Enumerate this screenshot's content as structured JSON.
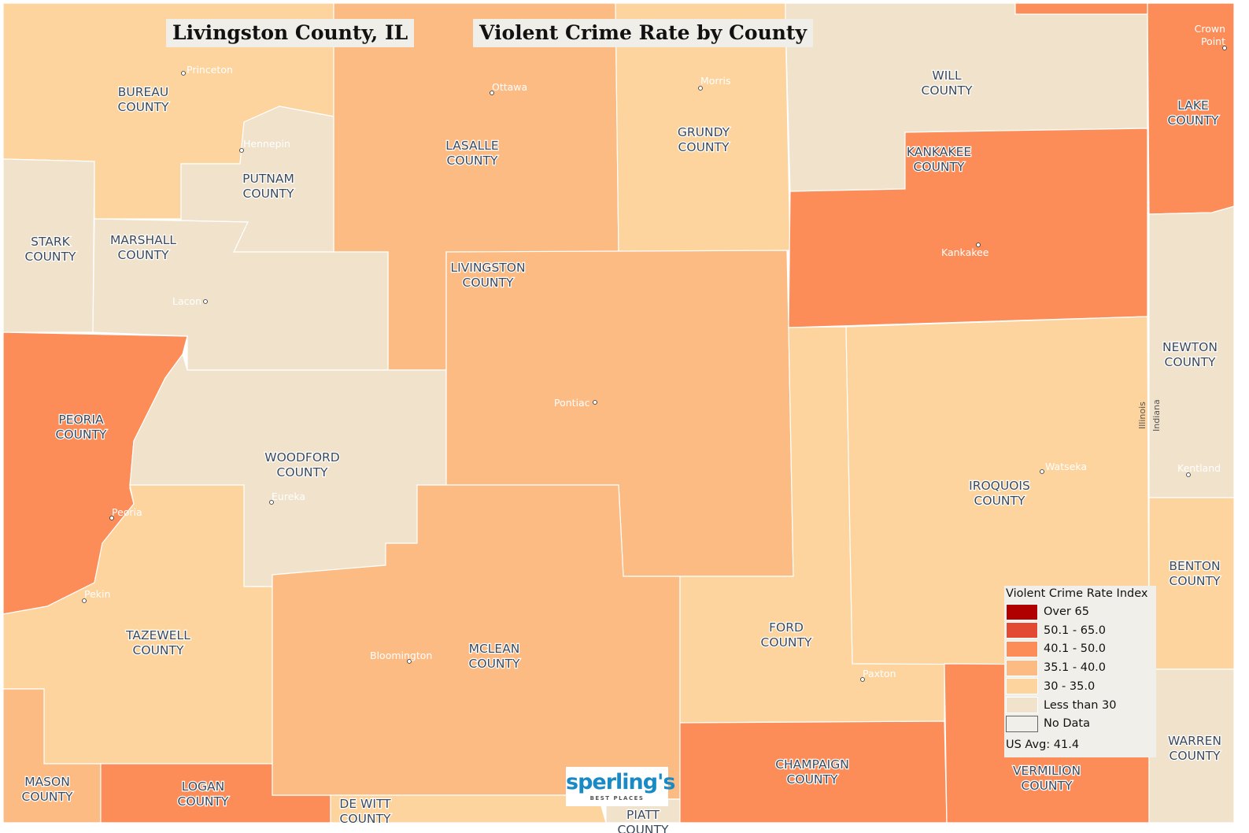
{
  "titles": {
    "left": "Livingston County, IL",
    "right": "Violent Crime Rate by County"
  },
  "colors": {
    "over_65": "#b10000",
    "r50_65": "#e34a33",
    "r40_50": "#fc8d59",
    "r35_40": "#fdbb84",
    "r30_35": "#fdd49e",
    "lt_30": "#f0e2cb",
    "no_data": "#f0efe9"
  },
  "legend": {
    "title": "Violent Crime Rate Index",
    "items": [
      {
        "label": "Over 65",
        "color": "#b10000"
      },
      {
        "label": "50.1 - 65.0",
        "color": "#e34a33"
      },
      {
        "label": "40.1 - 50.0",
        "color": "#fc8d59"
      },
      {
        "label": "35.1 - 40.0",
        "color": "#fdbb84"
      },
      {
        "label": "30 - 35.0",
        "color": "#fdd49e"
      },
      {
        "label": "Less than 30",
        "color": "#f0e2cb"
      },
      {
        "label": "No Data",
        "color": "#f0efe9"
      }
    ],
    "us_avg": "US Avg: 41.4"
  },
  "counties": [
    {
      "name": "BUREAU COUNTY",
      "range": "r30_35"
    },
    {
      "name": "LASALLE COUNTY",
      "range": "r35_40"
    },
    {
      "name": "GRUNDY COUNTY",
      "range": "r30_35"
    },
    {
      "name": "WILL COUNTY",
      "range": "lt_30"
    },
    {
      "name": "",
      "range": "r40_50"
    },
    {
      "name": "LAKE COUNTY",
      "range": "r40_50"
    },
    {
      "name": "KANKAKEE COUNTY",
      "range": "r40_50"
    },
    {
      "name": "PUTNAM COUNTY",
      "range": "lt_30"
    },
    {
      "name": "STARK COUNTY",
      "range": "lt_30"
    },
    {
      "name": "MARSHALL COUNTY",
      "range": "lt_30"
    },
    {
      "name": "PEORIA COUNTY",
      "range": "r40_50"
    },
    {
      "name": "WOODFORD COUNTY",
      "range": "lt_30"
    },
    {
      "name": "LIVINGSTON COUNTY",
      "range": "r35_40"
    },
    {
      "name": "TAZEWELL COUNTY",
      "range": "r30_35"
    },
    {
      "name": "MASON COUNTY",
      "range": "r35_40"
    },
    {
      "name": "LOGAN COUNTY",
      "range": "r40_50"
    },
    {
      "name": "MCLEAN COUNTY",
      "range": "r35_40"
    },
    {
      "name": "DE WITT COUNTY",
      "range": "r30_35"
    },
    {
      "name": "PIATT COUNTY",
      "range": "lt_30"
    },
    {
      "name": "FORD COUNTY",
      "range": "r30_35"
    },
    {
      "name": "IROQUOIS COUNTY",
      "range": "r30_35"
    },
    {
      "name": "CHAMPAIGN COUNTY",
      "range": "r40_50"
    },
    {
      "name": "VERMILION COUNTY",
      "range": "r40_50"
    },
    {
      "name": "NEWTON COUNTY",
      "range": "lt_30"
    },
    {
      "name": "BENTON COUNTY",
      "range": "r30_35"
    },
    {
      "name": "WARREN COUNTY",
      "range": "lt_30"
    }
  ],
  "cities": [
    "Princeton",
    "Ottawa",
    "Morris",
    "Crown Point",
    "Hennepin",
    "Kankakee",
    "Lacon",
    "Pontiac",
    "Watseka",
    "Kentland",
    "Eureka",
    "Peoria",
    "Pekin",
    "Bloomington",
    "Paxton"
  ],
  "state_labels": {
    "left": "Illinois",
    "right": "Indiana"
  },
  "logo": {
    "word": "sperling's",
    "tag": "BEST PLACES"
  }
}
